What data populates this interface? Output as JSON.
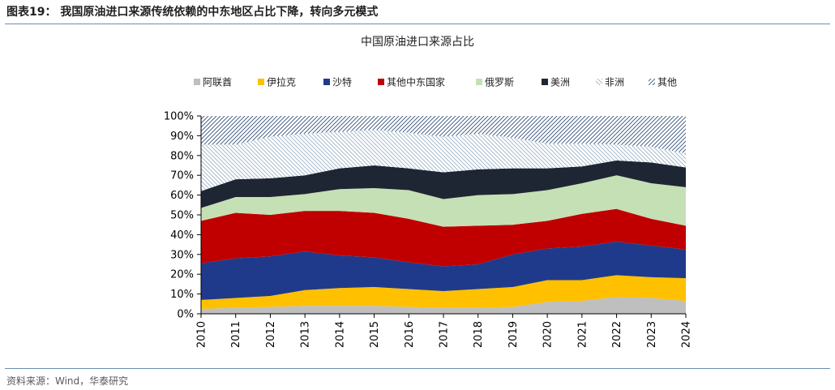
{
  "figure": {
    "title": "图表19：  我国原油进口来源传统依赖的中东地区占比下降，转向多元模式",
    "source": "资料来源：Wind，华泰研究"
  },
  "chart_data": {
    "type": "area",
    "stacked": true,
    "title": "中国原油进口来源占比",
    "xlabel": "",
    "ylabel": "",
    "ylim": [
      0,
      100
    ],
    "yticks": [
      "0%",
      "10%",
      "20%",
      "30%",
      "40%",
      "50%",
      "60%",
      "70%",
      "80%",
      "90%",
      "100%"
    ],
    "x": [
      "2010",
      "2011",
      "2012",
      "2013",
      "2014",
      "2015",
      "2016",
      "2017",
      "2018",
      "2019",
      "2020",
      "2021",
      "2022",
      "2023",
      "2024"
    ],
    "legend_position": "top",
    "grid": false,
    "series": [
      {
        "name": "阿联酋",
        "color": "#bfbfbf",
        "pattern": "solid",
        "values": [
          2.5,
          3.0,
          3.5,
          4.0,
          4.0,
          4.0,
          3.5,
          3.0,
          3.0,
          3.5,
          6.0,
          6.5,
          8.5,
          8.0,
          6.5
        ]
      },
      {
        "name": "伊拉克",
        "color": "#ffc000",
        "pattern": "solid",
        "values": [
          4.5,
          5.0,
          5.5,
          8.0,
          9.0,
          9.5,
          9.0,
          8.5,
          9.5,
          10.0,
          11.0,
          10.5,
          11.0,
          10.5,
          11.5
        ]
      },
      {
        "name": "沙特",
        "color": "#1f3a8a",
        "pattern": "solid",
        "values": [
          18.5,
          20.0,
          20.0,
          19.5,
          16.5,
          15.0,
          13.5,
          12.5,
          12.5,
          16.5,
          16.0,
          17.0,
          17.0,
          16.0,
          14.5
        ]
      },
      {
        "name": "其他中东国家",
        "color": "#c00000",
        "pattern": "solid",
        "values": [
          21.5,
          23.0,
          21.0,
          20.5,
          22.5,
          22.5,
          22.0,
          20.0,
          19.5,
          15.0,
          14.0,
          16.5,
          16.5,
          13.5,
          12.0
        ]
      },
      {
        "name": "俄罗斯",
        "color": "#c5e0b4",
        "pattern": "solid",
        "values": [
          6.5,
          8.0,
          9.0,
          8.5,
          11.0,
          12.5,
          14.5,
          14.0,
          15.5,
          15.5,
          15.5,
          15.5,
          17.0,
          18.0,
          19.5
        ]
      },
      {
        "name": "美洲",
        "color": "#1f2633",
        "pattern": "solid",
        "values": [
          8.5,
          9.0,
          9.5,
          9.5,
          10.5,
          11.5,
          11.0,
          13.5,
          13.0,
          13.0,
          11.0,
          8.5,
          7.5,
          10.5,
          10.0
        ]
      },
      {
        "name": "非洲",
        "color": "#9db3c6",
        "pattern": "backslash",
        "values": [
          23.5,
          17.5,
          21.0,
          21.0,
          18.5,
          18.0,
          18.0,
          18.0,
          18.0,
          15.5,
          12.5,
          11.5,
          8.0,
          8.0,
          7.0
        ]
      },
      {
        "name": "其他",
        "color": "#34507a",
        "pattern": "slash",
        "values": [
          14.5,
          14.5,
          10.5,
          9.0,
          8.0,
          7.0,
          8.5,
          10.5,
          9.0,
          11.0,
          14.0,
          14.0,
          14.5,
          15.5,
          19.0
        ]
      }
    ]
  }
}
